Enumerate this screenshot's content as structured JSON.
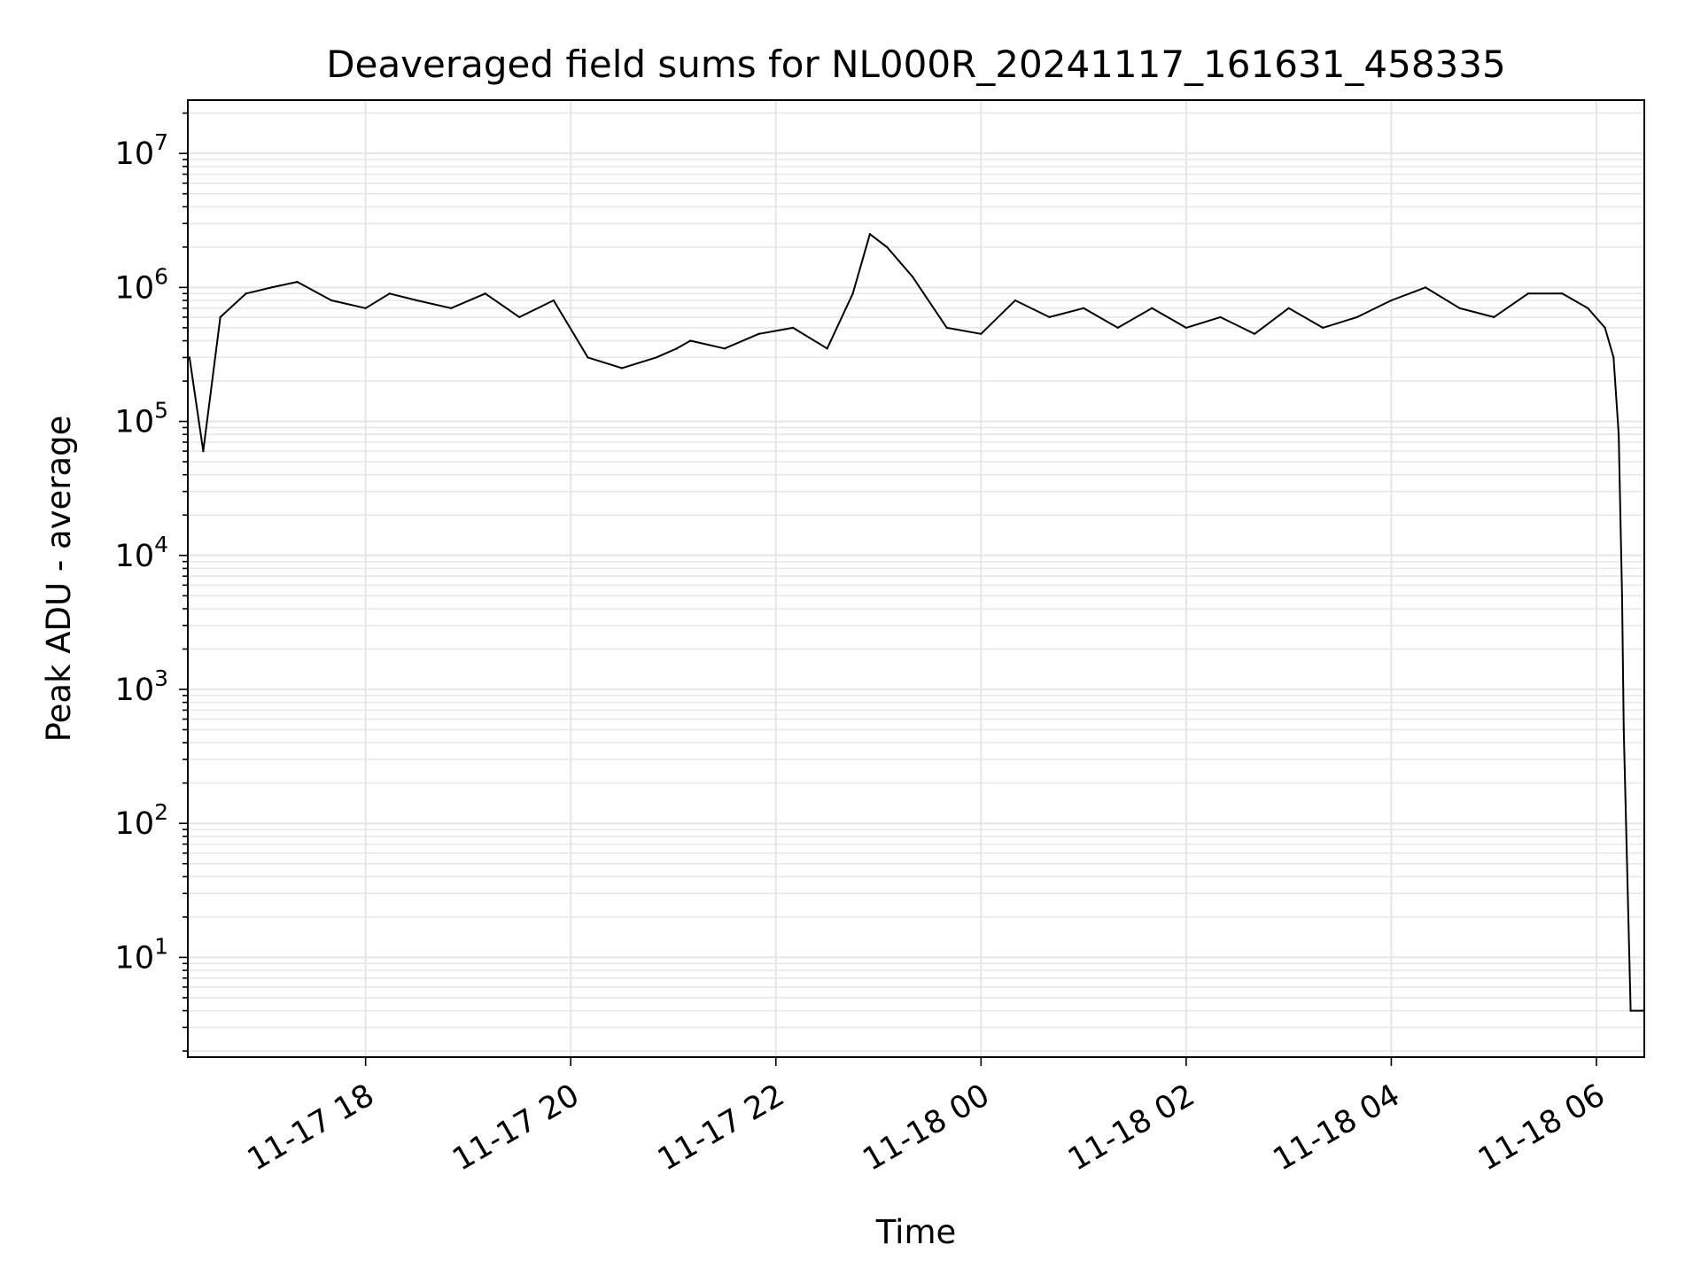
{
  "chart_data": {
    "type": "line",
    "title": "Deaveraged field sums for NL000R_20241117_161631_458335",
    "xlabel": "Time",
    "ylabel": "Peak ADU - average",
    "yscale": "log",
    "xlim": [
      "2024-11-17 16:16",
      "2024-11-18 06:28"
    ],
    "ylim": [
      1.8,
      25000000
    ],
    "x_ticks": [
      {
        "value": "2024-11-17 18:00",
        "label": "11-17 18"
      },
      {
        "value": "2024-11-17 20:00",
        "label": "11-17 20"
      },
      {
        "value": "2024-11-17 22:00",
        "label": "11-17 22"
      },
      {
        "value": "2024-11-18 00:00",
        "label": "11-18 00"
      },
      {
        "value": "2024-11-18 02:00",
        "label": "11-18 02"
      },
      {
        "value": "2024-11-18 04:00",
        "label": "11-18 04"
      },
      {
        "value": "2024-11-18 06:00",
        "label": "11-18 06"
      }
    ],
    "y_ticks": [
      {
        "value": 10,
        "base": "10",
        "exp": "1"
      },
      {
        "value": 100,
        "base": "10",
        "exp": "2"
      },
      {
        "value": 1000,
        "base": "10",
        "exp": "3"
      },
      {
        "value": 10000,
        "base": "10",
        "exp": "4"
      },
      {
        "value": 100000,
        "base": "10",
        "exp": "5"
      },
      {
        "value": 1000000,
        "base": "10",
        "exp": "6"
      },
      {
        "value": 10000000,
        "base": "10",
        "exp": "7"
      }
    ],
    "grid": true,
    "legend": "none",
    "line_color": "#000000",
    "grid_color": "#e6e6e6",
    "series": [
      {
        "x": [
          "2024-11-17 16:17",
          "2024-11-17 16:25",
          "2024-11-17 16:35",
          "2024-11-17 16:50",
          "2024-11-17 17:05",
          "2024-11-17 17:20",
          "2024-11-17 17:40",
          "2024-11-17 18:00",
          "2024-11-17 18:14",
          "2024-11-17 18:30",
          "2024-11-17 18:50",
          "2024-11-17 19:10",
          "2024-11-17 19:30",
          "2024-11-17 19:50",
          "2024-11-17 20:10",
          "2024-11-17 20:30",
          "2024-11-17 20:50",
          "2024-11-17 21:02",
          "2024-11-17 21:10",
          "2024-11-17 21:30",
          "2024-11-17 21:50",
          "2024-11-17 22:10",
          "2024-11-17 22:30",
          "2024-11-17 22:45",
          "2024-11-17 22:55",
          "2024-11-17 23:05",
          "2024-11-17 23:20",
          "2024-11-17 23:40",
          "2024-11-18 00:00",
          "2024-11-18 00:20",
          "2024-11-18 00:40",
          "2024-11-18 01:00",
          "2024-11-18 01:20",
          "2024-11-18 01:40",
          "2024-11-18 02:00",
          "2024-11-18 02:20",
          "2024-11-18 02:40",
          "2024-11-18 03:00",
          "2024-11-18 03:20",
          "2024-11-18 03:40",
          "2024-11-18 04:00",
          "2024-11-18 04:20",
          "2024-11-18 04:40",
          "2024-11-18 05:00",
          "2024-11-18 05:20",
          "2024-11-18 05:40",
          "2024-11-18 05:55",
          "2024-11-18 06:05",
          "2024-11-18 06:10",
          "2024-11-18 06:13",
          "2024-11-18 06:15",
          "2024-11-18 06:16",
          "2024-11-18 06:20",
          "2024-11-18 06:27"
        ],
        "y": [
          300000,
          60000,
          600000,
          900000,
          1000000,
          1100000,
          800000,
          700000,
          900000,
          800000,
          700000,
          900000,
          600000,
          800000,
          300000,
          250000,
          300000,
          350000,
          400000,
          350000,
          450000,
          500000,
          350000,
          900000,
          2500000,
          2000000,
          1200000,
          500000,
          450000,
          800000,
          600000,
          700000,
          500000,
          700000,
          500000,
          600000,
          450000,
          700000,
          500000,
          600000,
          800000,
          1000000,
          700000,
          600000,
          900000,
          900000,
          700000,
          500000,
          300000,
          80000,
          5000,
          500,
          4,
          4
        ]
      }
    ]
  }
}
